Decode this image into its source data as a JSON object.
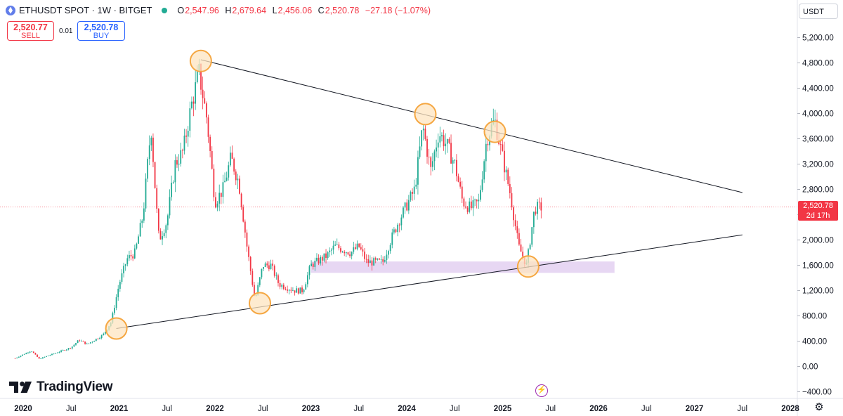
{
  "header": {
    "symbol_line": "ETHUSDT SPOT · 1W · BITGET",
    "ohlc": [
      {
        "label": "O",
        "value": "2,547.96"
      },
      {
        "label": "H",
        "value": "2,679.64"
      },
      {
        "label": "L",
        "value": "2,456.06"
      },
      {
        "label": "C",
        "value": "2,520.78"
      }
    ],
    "change": "−27.18 (−1.07%)"
  },
  "trade": {
    "sell_price": "2,520.77",
    "sell_label": "SELL",
    "spread": "0.01",
    "buy_price": "2,520.78",
    "buy_label": "BUY"
  },
  "currency_selector": "USDT",
  "last_price_tag": {
    "price": "2,520.78",
    "countdown": "2d 17h"
  },
  "logo_text": "TradingView",
  "colors": {
    "up": "#22ab94",
    "down": "#f23645",
    "zone": "#e3d0f1",
    "circle_fill": "#fde4c0",
    "circle_stroke": "#f5a742",
    "trendline": "#131722"
  },
  "icons": [
    "ethereum-icon",
    "market-status-icon",
    "tradingview-logo-icon",
    "flash-icon",
    "gear-icon"
  ],
  "chart_data": {
    "type": "candlestick",
    "title": "ETHUSDT SPOT · 1W · BITGET",
    "ylim": [
      -500,
      5500
    ],
    "y_ticks": [
      5200,
      4800,
      4400,
      4000,
      3600,
      3200,
      2800,
      2400,
      2000,
      1600,
      1200,
      800,
      400,
      0,
      -400
    ],
    "y_tick_labels": [
      "5,200.00",
      "4,800.00",
      "4,400.00",
      "4,000.00",
      "3,600.00",
      "3,200.00",
      "2,800.00",
      "",
      "2,000.00",
      "1,600.00",
      "1,200.00",
      "800.00",
      "400.00",
      "0.00",
      "−400.00"
    ],
    "x_ticks": [
      {
        "date": "2020-01",
        "label": "2020"
      },
      {
        "date": "2020-07",
        "label": "Jul"
      },
      {
        "date": "2021-01",
        "label": "2021"
      },
      {
        "date": "2021-07",
        "label": "Jul"
      },
      {
        "date": "2022-01",
        "label": "2022"
      },
      {
        "date": "2022-07",
        "label": "Jul"
      },
      {
        "date": "2023-01",
        "label": "2023"
      },
      {
        "date": "2023-07",
        "label": "Jul"
      },
      {
        "date": "2024-01",
        "label": "2024"
      },
      {
        "date": "2024-07",
        "label": "Jul"
      },
      {
        "date": "2025-01",
        "label": "2025"
      },
      {
        "date": "2025-07",
        "label": "Jul"
      },
      {
        "date": "2026-01",
        "label": "2026"
      },
      {
        "date": "2026-07",
        "label": "Jul"
      },
      {
        "date": "2027-01",
        "label": "2027"
      },
      {
        "date": "2027-07",
        "label": "Jul"
      },
      {
        "date": "2028-01",
        "label": "2028"
      }
    ],
    "last_price": 2520.78,
    "price_path": [
      [
        "2019-12",
        130
      ],
      [
        "2020-02",
        250
      ],
      [
        "2020-03",
        120
      ],
      [
        "2020-05",
        210
      ],
      [
        "2020-07",
        300
      ],
      [
        "2020-08",
        420
      ],
      [
        "2020-09",
        350
      ],
      [
        "2020-11",
        500
      ],
      [
        "2020-12",
        700
      ],
      [
        "2021-01",
        1300
      ],
      [
        "2021-02",
        1700
      ],
      [
        "2021-03",
        1800
      ],
      [
        "2021-04",
        2400
      ],
      [
        "2021-05",
        3800
      ],
      [
        "2021-05-20",
        2600
      ],
      [
        "2021-06",
        2000
      ],
      [
        "2021-07",
        2300
      ],
      [
        "2021-08",
        3200
      ],
      [
        "2021-09",
        3400
      ],
      [
        "2021-10",
        4100
      ],
      [
        "2021-11",
        4650
      ],
      [
        "2021-12",
        3900
      ],
      [
        "2022-01",
        2600
      ],
      [
        "2022-02",
        2800
      ],
      [
        "2022-03",
        3300
      ],
      [
        "2022-04",
        2900
      ],
      [
        "2022-05",
        1900
      ],
      [
        "2022-06",
        1050
      ],
      [
        "2022-07",
        1600
      ],
      [
        "2022-08",
        1600
      ],
      [
        "2022-09",
        1300
      ],
      [
        "2022-11",
        1200
      ],
      [
        "2022-12",
        1200
      ],
      [
        "2023-01",
        1600
      ],
      [
        "2023-03",
        1750
      ],
      [
        "2023-04",
        1900
      ],
      [
        "2023-06",
        1800
      ],
      [
        "2023-07",
        1900
      ],
      [
        "2023-08",
        1650
      ],
      [
        "2023-10",
        1650
      ],
      [
        "2023-11",
        2000
      ],
      [
        "2023-12",
        2300
      ],
      [
        "2024-02",
        2800
      ],
      [
        "2024-03",
        3800
      ],
      [
        "2024-04",
        3100
      ],
      [
        "2024-05",
        3700
      ],
      [
        "2024-06",
        3500
      ],
      [
        "2024-07",
        3200
      ],
      [
        "2024-08",
        2600
      ],
      [
        "2024-09",
        2500
      ],
      [
        "2024-10",
        2600
      ],
      [
        "2024-11",
        3600
      ],
      [
        "2024-12",
        3900
      ],
      [
        "2025-01",
        3300
      ],
      [
        "2025-02",
        2700
      ],
      [
        "2025-03",
        1900
      ],
      [
        "2025-04",
        1600
      ],
      [
        "2025-05",
        2500
      ],
      [
        "2025-06",
        2520
      ]
    ],
    "annotations": {
      "trendlines": [
        {
          "from": [
            "2021-11-08",
            4850
          ],
          "to": [
            "2027-07-01",
            2750
          ]
        },
        {
          "from": [
            "2020-12-21",
            600
          ],
          "to": [
            "2027-07-01",
            2080
          ]
        }
      ],
      "support_zone": {
        "from": "2023-01-01",
        "to": "2026-03-01",
        "low": 1480,
        "high": 1660
      },
      "circles": [
        {
          "date": "2020-12-21",
          "price": 600
        },
        {
          "date": "2021-11-08",
          "price": 4830
        },
        {
          "date": "2022-06-20",
          "price": 1000
        },
        {
          "date": "2024-03-11",
          "price": 3990
        },
        {
          "date": "2024-12-02",
          "price": 3710
        },
        {
          "date": "2025-04-07",
          "price": 1580
        }
      ]
    }
  }
}
